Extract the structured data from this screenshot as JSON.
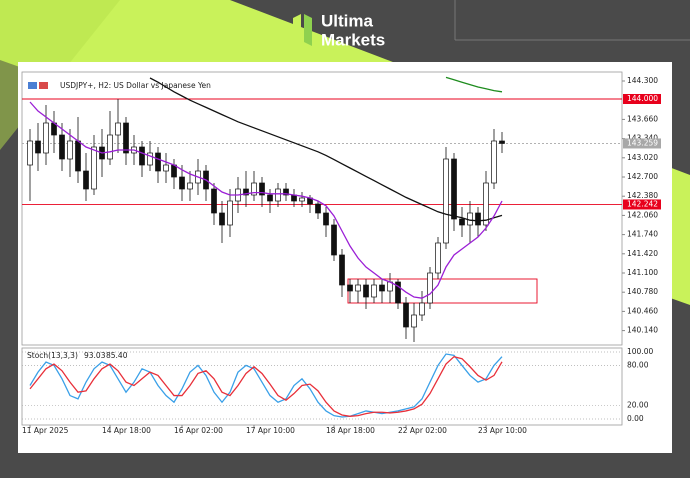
{
  "brand": {
    "line1": "Ultima",
    "line2": "Markets"
  },
  "chart_data": {
    "type": "candlestick",
    "title": "USDJPY+, H2:  US Dollar vs Japanese Yen",
    "categories": [
      "11 Apr 2025",
      null,
      null,
      null,
      null,
      null,
      null,
      null,
      null,
      null,
      "14 Apr 18:00",
      null,
      null,
      null,
      null,
      null,
      null,
      null,
      null,
      "16 Apr 02:00",
      null,
      null,
      null,
      null,
      null,
      null,
      null,
      null,
      "17 Apr 10:00",
      null,
      null,
      null,
      null,
      null,
      null,
      null,
      null,
      null,
      "18 Apr 18:00",
      null,
      null,
      null,
      null,
      null,
      null,
      null,
      null,
      "22 Apr 02:00",
      null,
      null,
      null,
      null,
      null,
      null,
      null,
      null,
      null,
      "23 Apr 10:00",
      null,
      null
    ],
    "open": [
      142.9,
      143.3,
      143.1,
      143.6,
      143.4,
      143.0,
      143.3,
      142.8,
      142.5,
      143.2,
      143.0,
      143.4,
      143.6,
      143.1,
      143.2,
      142.9,
      143.1,
      142.8,
      142.9,
      142.7,
      142.5,
      142.6,
      142.8,
      142.5,
      142.1,
      141.9,
      142.3,
      142.5,
      142.4,
      142.6,
      142.4,
      142.3,
      142.5,
      142.4,
      142.3,
      142.35,
      142.25,
      142.1,
      141.9,
      141.4,
      140.9,
      140.8,
      140.9,
      140.7,
      140.9,
      140.8,
      140.95,
      140.6,
      140.2,
      140.4,
      140.6,
      141.1,
      141.6,
      143.0,
      142.0,
      141.9,
      142.1,
      141.9,
      142.6,
      143.3
    ],
    "high": [
      143.5,
      143.6,
      143.9,
      143.8,
      143.6,
      143.5,
      143.7,
      143.1,
      143.4,
      143.5,
      143.8,
      144.0,
      143.7,
      143.4,
      143.3,
      143.3,
      143.2,
      143.1,
      143.0,
      142.9,
      142.8,
      143.0,
      142.9,
      142.6,
      142.3,
      142.5,
      142.7,
      142.8,
      142.8,
      142.7,
      142.5,
      142.6,
      142.6,
      142.5,
      142.45,
      142.4,
      142.3,
      142.2,
      142.0,
      141.5,
      141.0,
      141.0,
      141.0,
      141.0,
      141.0,
      141.1,
      141.0,
      140.7,
      140.6,
      140.8,
      141.2,
      141.7,
      143.2,
      143.1,
      142.2,
      142.3,
      142.2,
      142.8,
      143.5,
      143.45
    ],
    "low": [
      142.3,
      142.8,
      142.9,
      143.1,
      142.8,
      142.7,
      142.6,
      142.3,
      142.4,
      142.7,
      142.9,
      143.1,
      142.9,
      142.9,
      142.7,
      142.8,
      142.6,
      142.6,
      142.5,
      142.3,
      142.3,
      142.4,
      142.3,
      141.9,
      141.6,
      141.7,
      142.1,
      142.2,
      142.3,
      142.2,
      142.1,
      142.2,
      142.3,
      142.2,
      142.2,
      142.1,
      142.0,
      141.7,
      141.3,
      140.7,
      140.6,
      140.6,
      140.5,
      140.6,
      140.6,
      140.6,
      140.5,
      140.0,
      139.95,
      140.3,
      140.5,
      141.0,
      141.5,
      141.8,
      141.7,
      141.6,
      141.7,
      141.8,
      142.5,
      143.1
    ],
    "close": [
      143.3,
      143.1,
      143.6,
      143.4,
      143.0,
      143.3,
      142.8,
      142.5,
      143.2,
      143.0,
      143.4,
      143.6,
      143.1,
      143.2,
      142.9,
      143.1,
      142.8,
      142.9,
      142.7,
      142.5,
      142.6,
      142.8,
      142.5,
      142.1,
      141.9,
      142.3,
      142.5,
      142.4,
      142.6,
      142.4,
      142.3,
      142.5,
      142.4,
      142.3,
      142.35,
      142.25,
      142.1,
      141.9,
      141.4,
      140.9,
      140.8,
      140.9,
      140.7,
      140.9,
      140.8,
      140.95,
      140.6,
      140.2,
      140.4,
      140.6,
      141.1,
      141.6,
      143.0,
      142.0,
      141.9,
      142.1,
      141.9,
      142.6,
      143.3,
      143.259
    ],
    "lines": [
      {
        "color": "#111111",
        "values": [
          null,
          null,
          null,
          null,
          null,
          null,
          null,
          null,
          null,
          null,
          null,
          null,
          null,
          null,
          null,
          144.35,
          144.28,
          144.2,
          144.12,
          144.05,
          143.98,
          143.92,
          143.86,
          143.8,
          143.74,
          143.68,
          143.62,
          143.57,
          143.52,
          143.47,
          143.42,
          143.37,
          143.32,
          143.27,
          143.22,
          143.17,
          143.12,
          143.06,
          142.99,
          142.92,
          142.85,
          142.78,
          142.71,
          142.64,
          142.57,
          142.5,
          142.43,
          142.36,
          142.3,
          142.24,
          142.18,
          142.12,
          142.08,
          142.05,
          142.02,
          141.98,
          141.97,
          141.98,
          142.02,
          142.06
        ]
      },
      {
        "color": "#9b1fd6",
        "values": [
          143.95,
          143.8,
          143.7,
          143.6,
          143.5,
          143.4,
          143.3,
          143.2,
          143.15,
          143.1,
          143.12,
          143.15,
          143.15,
          143.15,
          143.1,
          143.05,
          143.0,
          142.95,
          142.9,
          142.82,
          142.75,
          142.7,
          142.65,
          142.55,
          142.45,
          142.4,
          142.4,
          142.42,
          142.44,
          142.44,
          142.42,
          142.42,
          142.42,
          142.4,
          142.38,
          142.35,
          142.3,
          142.22,
          142.05,
          141.8,
          141.55,
          141.35,
          141.2,
          141.1,
          141.0,
          140.95,
          140.88,
          140.78,
          140.7,
          140.68,
          140.75,
          140.9,
          141.2,
          141.4,
          141.5,
          141.6,
          141.7,
          141.85,
          142.05,
          142.3
        ]
      },
      {
        "color": "#1e8c1e",
        "values": [
          null,
          null,
          null,
          null,
          null,
          null,
          null,
          null,
          null,
          null,
          null,
          null,
          null,
          null,
          null,
          null,
          null,
          null,
          null,
          null,
          null,
          null,
          null,
          null,
          null,
          null,
          null,
          null,
          null,
          null,
          null,
          null,
          null,
          null,
          null,
          null,
          null,
          null,
          null,
          null,
          null,
          null,
          null,
          null,
          null,
          null,
          null,
          null,
          null,
          null,
          null,
          null,
          144.36,
          144.32,
          144.28,
          144.24,
          144.2,
          144.17,
          144.14,
          144.12
        ]
      }
    ],
    "levels": [
      {
        "value": 144.0,
        "label": "144.000",
        "color": "#e8001c"
      },
      {
        "value": 142.242,
        "label": "142.242",
        "color": "#e8001c"
      },
      {
        "value": 143.259,
        "label": "143.259",
        "color": "#a8a8a8"
      }
    ],
    "zone": {
      "low": 140.6,
      "high": 141.0,
      "color": "#e8001c"
    },
    "ylim": [
      139.9,
      144.4
    ],
    "yticks": [
      {
        "value": 144.3,
        "label": "144.300"
      },
      {
        "value": 143.66,
        "label": "143.660"
      },
      {
        "value": 143.34,
        "label": "143.340"
      },
      {
        "value": 143.02,
        "label": "143.020"
      },
      {
        "value": 142.7,
        "label": "142.700"
      },
      {
        "value": 142.38,
        "label": "142.380"
      },
      {
        "value": 142.06,
        "label": "142.060"
      },
      {
        "value": 141.74,
        "label": "141.740"
      },
      {
        "value": 141.42,
        "label": "141.420"
      },
      {
        "value": 141.1,
        "label": "141.100"
      },
      {
        "value": 140.78,
        "label": "140.780"
      },
      {
        "value": 140.46,
        "label": "140.460"
      },
      {
        "value": 140.14,
        "label": "140.140"
      }
    ],
    "stoch": {
      "label": "Stoch(13,3,3)",
      "series": [
        {
          "color": "#3aa0e8",
          "values": [
            50,
            70,
            85,
            80,
            60,
            35,
            30,
            55,
            75,
            85,
            80,
            60,
            40,
            55,
            75,
            70,
            50,
            35,
            25,
            45,
            70,
            80,
            65,
            40,
            25,
            40,
            70,
            80,
            75,
            55,
            35,
            25,
            30,
            50,
            60,
            45,
            25,
            12,
            5,
            3,
            4,
            8,
            12,
            10,
            8,
            10,
            12,
            15,
            18,
            30,
            55,
            80,
            97,
            95,
            80,
            65,
            55,
            60,
            80,
            93.03
          ]
        },
        {
          "color": "#e8303a",
          "values": [
            45,
            60,
            75,
            82,
            72,
            55,
            40,
            42,
            60,
            75,
            82,
            72,
            55,
            50,
            60,
            70,
            65,
            50,
            35,
            35,
            50,
            68,
            72,
            60,
            40,
            35,
            50,
            68,
            78,
            68,
            52,
            35,
            28,
            38,
            50,
            52,
            42,
            25,
            12,
            6,
            4,
            5,
            8,
            10,
            10,
            9,
            10,
            12,
            15,
            22,
            38,
            60,
            82,
            93,
            90,
            78,
            65,
            58,
            65,
            85.4
          ],
          "value_labels": {
            "59": "85.40"
          }
        }
      ],
      "ylim": [
        -9,
        106
      ],
      "yticks": [
        {
          "value": 100,
          "label": "100.00"
        },
        {
          "value": 80,
          "label": "80.00"
        },
        {
          "value": 20,
          "label": "20.00"
        },
        {
          "value": 0,
          "label": "0.00"
        }
      ]
    }
  }
}
